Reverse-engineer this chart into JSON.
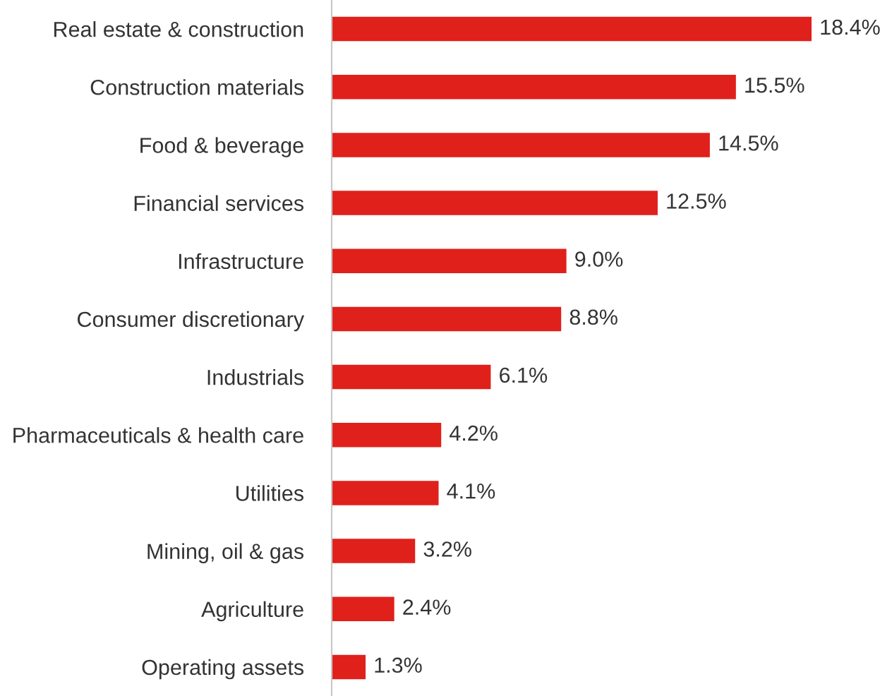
{
  "chart_data": {
    "type": "bar",
    "orientation": "horizontal",
    "categories": [
      "Real estate & construction",
      "Construction materials",
      "Food & beverage",
      "Financial services",
      "Infrastructure",
      "Consumer discretionary",
      "Industrials",
      "Pharmaceuticals & health care",
      "Utilities",
      "Mining, oil & gas",
      "Agriculture",
      "Operating assets"
    ],
    "values": [
      18.4,
      15.5,
      14.5,
      12.5,
      9.0,
      8.8,
      6.1,
      4.2,
      4.1,
      3.2,
      2.4,
      1.3
    ],
    "value_labels": [
      "18.4%",
      "15.5%",
      "14.5%",
      "12.5%",
      "9.0%",
      "8.8%",
      "6.1%",
      "4.2%",
      "4.1%",
      "3.2%",
      "2.4%",
      "1.3%"
    ],
    "color": "#e0201b"
  }
}
